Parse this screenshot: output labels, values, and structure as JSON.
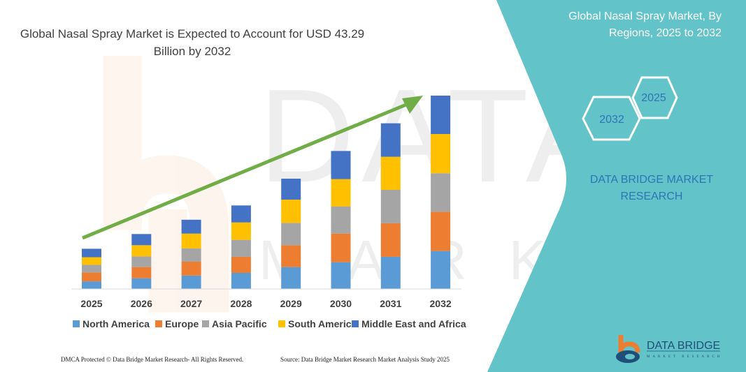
{
  "chart_title": "Global Nasal Spray Market is Expected to Account for USD 43.29 Billion by 2032",
  "chart_title_lines": [
    "Global Nasal Spray Market is Expected to Account for USD 43.29",
    "Billion by 2032"
  ],
  "panel": {
    "title_lines": [
      "Global Nasal Spray Market, By",
      "Regions, 2025 to 2032"
    ],
    "hex_start_year": "2025",
    "hex_end_year": "2032",
    "brand_lines": [
      "DATA BRIDGE MARKET",
      "RESEARCH"
    ],
    "logo_text": "DATA BRIDGE",
    "logo_subtext": "MARKET RESEARCH",
    "color": "#62C3C9"
  },
  "footer": {
    "copyright": "DMCA Protected © Data Bridge Market Research-  All Rights Reserved.",
    "source": "Source: Data Bridge Market Research  Market Analysis Study 2025"
  },
  "chart_data": {
    "type": "bar",
    "stacked": true,
    "title": "Global Nasal Spray Market is Expected to Account for USD 43.29 Billion by 2032",
    "categories": [
      "2025",
      "2026",
      "2027",
      "2028",
      "2029",
      "2030",
      "2031",
      "2032"
    ],
    "series": [
      {
        "name": "North America",
        "color": "#5B9BD5",
        "values": [
          1.7,
          2.4,
          3.0,
          3.6,
          4.9,
          6.0,
          7.2,
          8.5
        ]
      },
      {
        "name": "Europe",
        "color": "#ED7D31",
        "values": [
          2.0,
          2.5,
          3.1,
          3.6,
          4.9,
          6.4,
          7.5,
          8.8
        ]
      },
      {
        "name": "Asia Pacific",
        "color": "#A5A5A5",
        "values": [
          1.7,
          2.4,
          3.0,
          3.8,
          5.0,
          6.1,
          7.5,
          8.6
        ]
      },
      {
        "name": "South America",
        "color": "#FFC000",
        "values": [
          1.7,
          2.5,
          3.3,
          3.9,
          5.2,
          6.1,
          7.4,
          8.8
        ]
      },
      {
        "name": "Middle East and Africa",
        "color": "#4472C4",
        "values": [
          1.9,
          2.5,
          3.1,
          3.8,
          4.7,
          6.3,
          7.5,
          8.6
        ]
      }
    ],
    "unit": "USD Billion (estimated, no axis printed)",
    "ylim": [
      0,
      43.3
    ],
    "grid": false,
    "legend": "bottom",
    "trend_arrow_color": "#70AD47"
  }
}
